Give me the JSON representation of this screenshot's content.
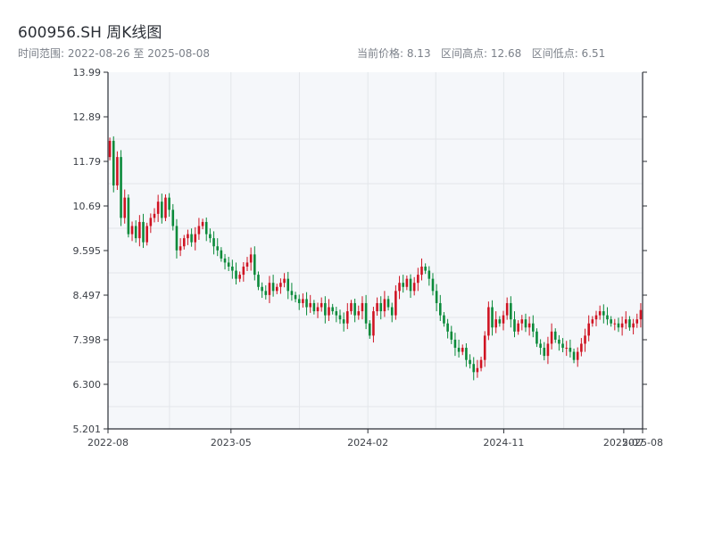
{
  "header": {
    "title": "600956.SH 周K线图",
    "subtitle": "时间范围: 2022-08-26 至 2025-08-08",
    "current_price": "当前价格: 8.13",
    "range_high": "区间高点: 12.68",
    "range_low": "区间低点: 6.51"
  },
  "colors": {
    "up": "#cf1322",
    "down": "#0a8a3a",
    "grid": "#e3e6ea",
    "plot_bg": "#f5f7fa",
    "axis": "#2b2f36"
  },
  "chart_data": {
    "type": "candlestick",
    "ylim": [
      5.201,
      13.99
    ],
    "y_ticks": [
      "13.99",
      "12.89",
      "11.79",
      "10.69",
      "9.595",
      "8.497",
      "7.398",
      "6.300",
      "5.201"
    ],
    "x_ticks": [
      "2022-08",
      "2023-05",
      "2024-02",
      "2024-11",
      "2025-07",
      "2025-08"
    ],
    "x_tick_dates": [
      "2022-08-26",
      "2023-05-01",
      "2024-02-01",
      "2024-11-01",
      "2025-07-01",
      "2025-08-08"
    ],
    "start_date": "2022-08-26",
    "end_date": "2025-08-08",
    "closes": [
      12.3,
      11.2,
      11.9,
      10.4,
      10.9,
      10.0,
      10.2,
      9.9,
      10.3,
      9.8,
      10.2,
      10.4,
      10.5,
      10.8,
      10.4,
      10.9,
      10.6,
      10.2,
      9.6,
      9.7,
      9.9,
      10.0,
      9.8,
      10.0,
      10.2,
      10.3,
      10.0,
      9.9,
      9.7,
      9.6,
      9.4,
      9.3,
      9.2,
      9.1,
      8.9,
      9.0,
      9.2,
      9.3,
      9.5,
      9.0,
      8.7,
      8.6,
      8.5,
      8.8,
      8.6,
      8.7,
      8.8,
      8.9,
      8.6,
      8.5,
      8.4,
      8.3,
      8.4,
      8.2,
      8.3,
      8.1,
      8.2,
      8.3,
      8.0,
      8.2,
      8.1,
      8.0,
      7.9,
      7.8,
      8.1,
      8.3,
      8.0,
      8.1,
      8.3,
      7.8,
      7.5,
      8.1,
      8.3,
      8.1,
      8.4,
      8.2,
      8.0,
      8.6,
      8.8,
      8.7,
      8.9,
      8.6,
      8.8,
      9.0,
      9.2,
      9.1,
      8.9,
      8.6,
      8.3,
      8.0,
      7.8,
      7.6,
      7.4,
      7.2,
      7.1,
      7.2,
      6.9,
      6.8,
      6.6,
      6.7,
      6.9,
      7.5,
      8.2,
      7.7,
      7.9,
      7.8,
      8.0,
      8.3,
      7.9,
      7.6,
      7.8,
      7.9,
      7.7,
      7.8,
      7.6,
      7.3,
      7.2,
      7.0,
      7.3,
      7.6,
      7.4,
      7.3,
      7.2,
      7.2,
      7.1,
      6.9,
      7.1,
      7.3,
      7.5,
      7.8,
      7.9,
      8.0,
      8.1,
      8.0,
      7.9,
      7.8,
      7.8,
      7.7,
      7.8,
      7.9,
      7.7,
      7.8,
      7.9,
      8.13
    ]
  }
}
